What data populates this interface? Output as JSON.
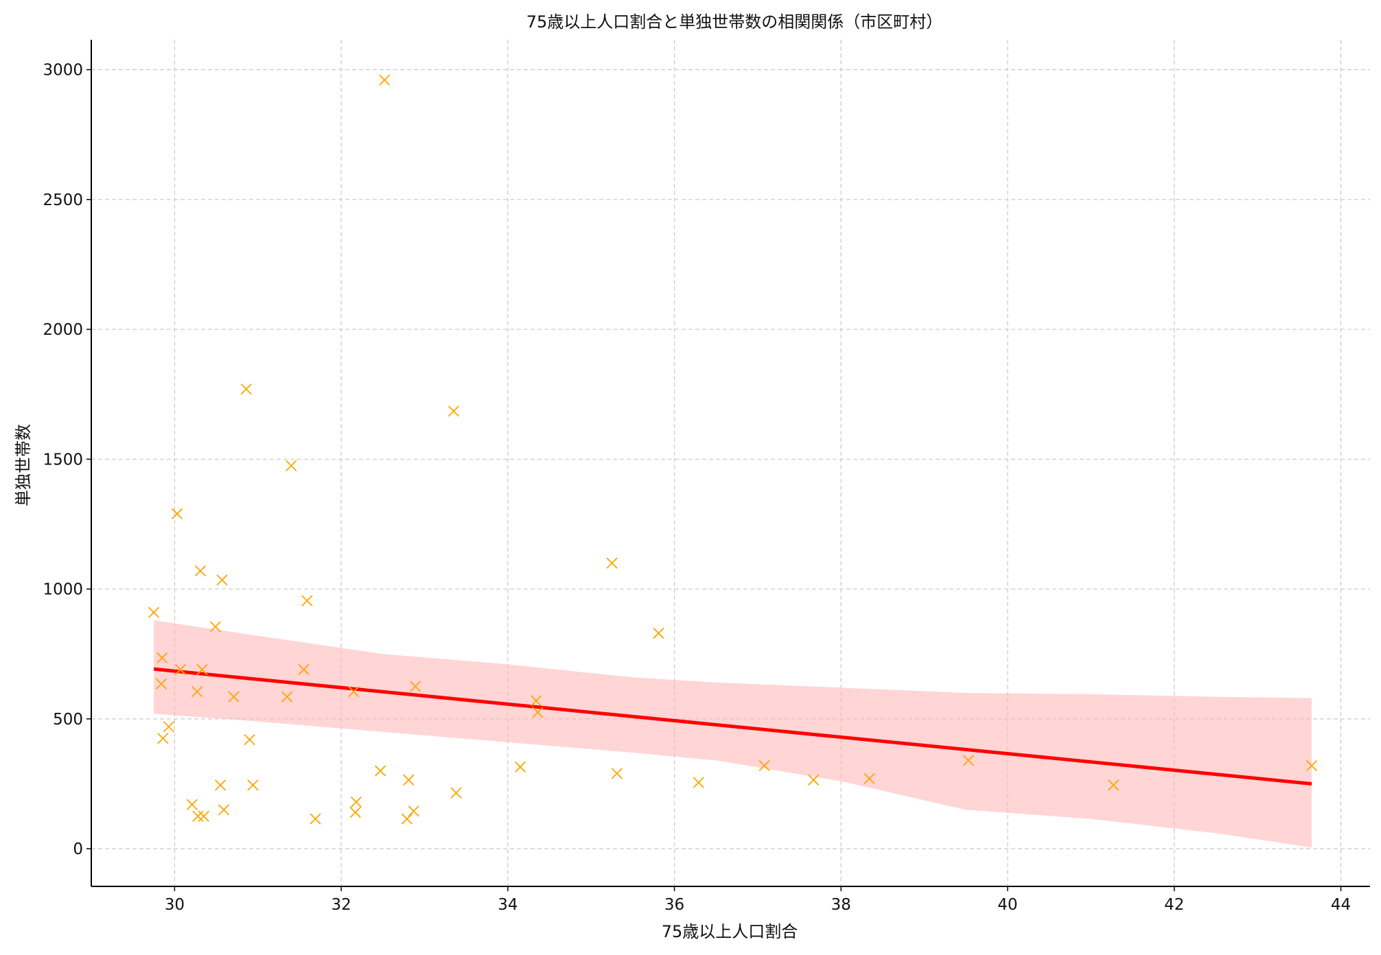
{
  "chart_data": {
    "type": "scatter",
    "title": "75歳以上人口割合と単独世帯数の相関関係（市区町村）",
    "xlabel": "75歳以上人口割合",
    "ylabel": "単独世帯数",
    "xlim": [
      29.0,
      44.35
    ],
    "ylim": [
      -145,
      3115
    ],
    "xticks": [
      30,
      32,
      34,
      36,
      38,
      40,
      42,
      44
    ],
    "yticks": [
      0,
      500,
      1000,
      1500,
      2000,
      2500,
      3000
    ],
    "grid": true,
    "grid_style": "dashed",
    "colors": {
      "points": "#FFA500",
      "regression_line": "#FF0000",
      "confidence_band": "#FFB3B3"
    },
    "series": [
      {
        "marker": "x",
        "x": [
          29.75,
          29.85,
          29.84,
          29.86,
          29.93,
          30.03,
          30.07,
          30.21,
          30.27,
          30.28,
          30.31,
          30.33,
          30.35,
          30.49,
          30.55,
          30.57,
          30.59,
          30.71,
          30.86,
          30.9,
          30.94,
          31.35,
          31.4,
          31.55,
          31.59,
          31.69,
          32.15,
          32.17,
          32.18,
          32.47,
          32.52,
          32.79,
          32.81,
          32.87,
          32.89,
          33.35,
          33.38,
          34.15,
          34.34,
          34.36,
          35.25,
          35.31,
          35.81,
          36.29,
          37.08,
          37.67,
          38.34,
          39.53,
          41.27,
          43.65
        ],
        "y": [
          910,
          735,
          635,
          425,
          470,
          1290,
          690,
          170,
          605,
          125,
          1070,
          690,
          125,
          855,
          245,
          1035,
          150,
          585,
          1770,
          420,
          245,
          585,
          1475,
          690,
          955,
          115,
          605,
          140,
          180,
          300,
          2960,
          115,
          265,
          145,
          625,
          1685,
          215,
          315,
          570,
          525,
          1100,
          290,
          830,
          255,
          320,
          265,
          270,
          340,
          245,
          320
        ]
      }
    ],
    "regression": {
      "x_range": [
        29.75,
        43.65
      ],
      "y_range": [
        692,
        250
      ],
      "confidence_band": {
        "x": [
          29.75,
          31.0,
          32.5,
          34.0,
          35.5,
          36.5,
          38.0,
          39.5,
          41.0,
          42.5,
          43.65
        ],
        "lower": [
          520,
          490,
          450,
          410,
          370,
          340,
          260,
          150,
          115,
          60,
          5
        ],
        "upper": [
          880,
          820,
          750,
          710,
          660,
          640,
          620,
          600,
          595,
          585,
          580
        ]
      }
    }
  }
}
